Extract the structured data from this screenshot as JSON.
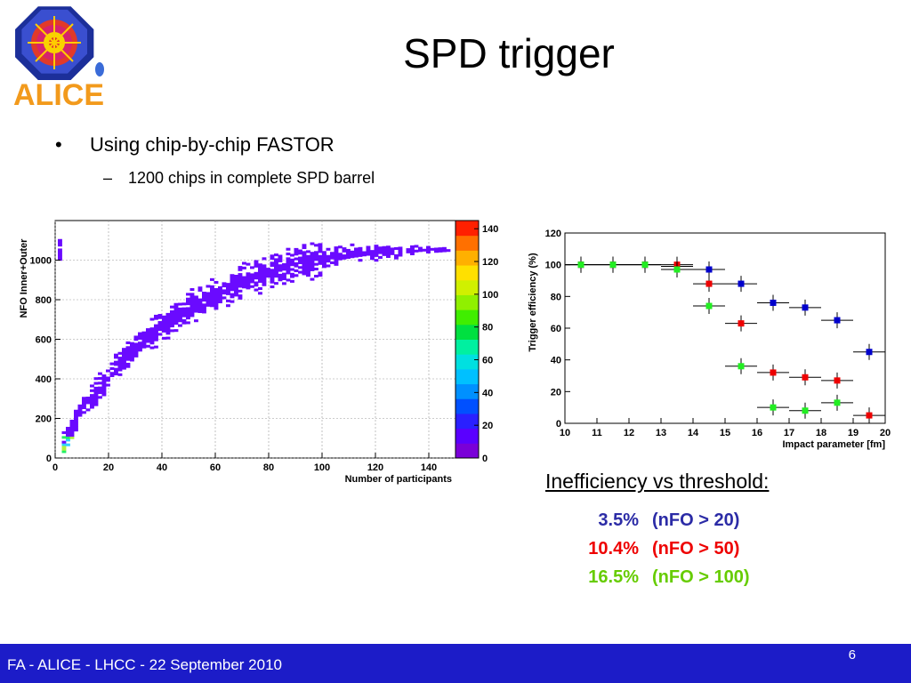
{
  "slide": {
    "title": "SPD trigger",
    "logo_text": "ALICE",
    "bullet_main": "Using chip-by-chip FASTOR",
    "bullet_sub": "1200 chips in complete SPD barrel",
    "bullet_marker": "•",
    "sub_marker": "–",
    "ineff_heading": "Inefficiency vs threshold:",
    "ineff_rows": [
      {
        "pct": "3.5%",
        "cond": "(nFO > 20)",
        "color": "#2b2ba6"
      },
      {
        "pct": "10.4%",
        "cond": "(nFO > 50)",
        "color": "#ee0000"
      },
      {
        "pct": "16.5%",
        "cond": "(nFO > 100)",
        "color": "#66cc00"
      }
    ],
    "footer": "FA - ALICE - LHCC - 22 September 2010",
    "page_number": "6"
  },
  "chart_data": [
    {
      "type": "heatmap",
      "xlabel": "Number of participants",
      "ylabel": "NFO Inner+Outer",
      "xlim": [
        0,
        150
      ],
      "ylim": [
        0,
        1200
      ],
      "x_ticks": [
        0,
        20,
        40,
        60,
        80,
        100,
        120,
        140
      ],
      "y_ticks": [
        0,
        200,
        400,
        600,
        800,
        1000
      ],
      "color_scale_ticks": [
        0,
        20,
        40,
        60,
        80,
        100,
        120,
        140
      ],
      "grid": true,
      "trend": {
        "x": [
          2,
          5,
          10,
          20,
          30,
          40,
          50,
          60,
          70,
          80,
          90,
          100,
          110,
          120,
          130,
          140,
          148
        ],
        "y": [
          50,
          120,
          250,
          420,
          560,
          670,
          760,
          830,
          890,
          940,
          980,
          1010,
          1025,
          1035,
          1040,
          1045,
          1045
        ]
      }
    },
    {
      "type": "scatter",
      "xlabel": "Impact parameter  [fm]",
      "ylabel": "Trigger efficiency (%)",
      "xlim": [
        10,
        20
      ],
      "ylim": [
        0,
        120
      ],
      "x_ticks": [
        10,
        11,
        12,
        13,
        14,
        15,
        16,
        17,
        18,
        19,
        20
      ],
      "y_ticks": [
        0,
        20,
        40,
        60,
        80,
        100,
        120
      ],
      "grid": false,
      "series": [
        {
          "color": "#0000cc",
          "x": [
            10.5,
            11.5,
            12.5,
            13.5,
            14.5,
            15.5,
            16.5,
            17.5,
            18.5,
            19.5
          ],
          "y": [
            100,
            100,
            100,
            99,
            97,
            88,
            76,
            73,
            65,
            45
          ]
        },
        {
          "color": "#ee0000",
          "x": [
            10.5,
            11.5,
            12.5,
            13.5,
            14.5,
            15.5,
            16.5,
            17.5,
            18.5,
            19.5
          ],
          "y": [
            100,
            100,
            100,
            100,
            88,
            63,
            32,
            29,
            27,
            5
          ]
        },
        {
          "color": "#22ee22",
          "x": [
            10.5,
            11.5,
            12.5,
            13.5,
            14.5,
            15.5,
            16.5,
            17.5,
            18.5
          ],
          "y": [
            100,
            100,
            100,
            97,
            74,
            36,
            10,
            8,
            13
          ]
        }
      ]
    }
  ]
}
